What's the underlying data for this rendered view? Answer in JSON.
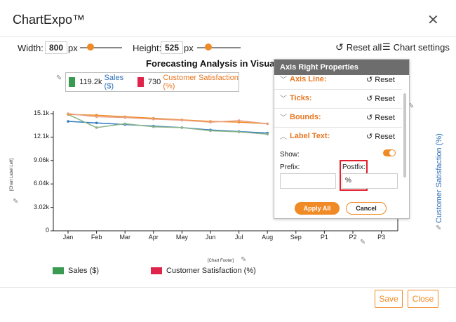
{
  "app": {
    "title": "ChartExpo™"
  },
  "toolbar": {
    "width_label": "Width:",
    "width_value": "800",
    "px": "px",
    "height_label": "Height:",
    "height_value": "525",
    "reset_all": "Reset all",
    "chart_settings": "Chart settings",
    "width_slider_fraction": 0.25,
    "height_slider_fraction": 0.25
  },
  "chart": {
    "title": "Forecasting Analysis in Visuali",
    "legend_top": [
      {
        "value": "119.2k",
        "name": "Sales ($)",
        "color": "#3a9a52",
        "text_color": "#2d6fb8"
      },
      {
        "value": "730",
        "name": "Customer Satisfaction (%)",
        "color": "#e0234a",
        "text_color": "#e87722"
      }
    ],
    "left_axis_label": "[Chart Label Left]",
    "right_axis_label": "Customer Satisfaction (%)",
    "footer_label": "[Chart Footer]",
    "legend_bottom": [
      {
        "name": "Sales ($)",
        "color": "#3a9a52"
      },
      {
        "name": "Customer Satisfaction (%)",
        "color": "#e0234a"
      }
    ]
  },
  "chart_data": {
    "type": "line",
    "title": "Forecasting Analysis in Visuali",
    "x": [
      "Jan",
      "Feb",
      "Mar",
      "Apr",
      "May",
      "Jun",
      "Jul",
      "Aug",
      "Sep",
      "P1",
      "P2",
      "P3"
    ],
    "yticks": [
      "0",
      "3.02k",
      "6.04k",
      "9.06k",
      "12.1k",
      "15.1k"
    ],
    "ylim": [
      0,
      15100
    ],
    "series": [
      {
        "name": "Sales ($)",
        "color": "#2e7bbf",
        "values": [
          14100,
          13900,
          13700,
          13500,
          13300,
          13000,
          12800,
          12600,
          null,
          null,
          null,
          null
        ]
      },
      {
        "name": "Sales ($)",
        "color": "#8cb38a",
        "values": [
          15000,
          13300,
          13800,
          13400,
          13300,
          12900,
          12750,
          12450,
          null,
          null,
          null,
          null
        ]
      },
      {
        "name": "Customer Satisfaction (%)",
        "color": "#f08a24",
        "values": [
          15000,
          14900,
          14700,
          14500,
          14300,
          14100,
          14000,
          13800,
          null,
          null,
          null,
          null
        ]
      },
      {
        "name": "Customer Satisfaction (%)",
        "color": "#e8a080",
        "values": [
          15100,
          14700,
          14600,
          14400,
          14250,
          14000,
          14200,
          13800,
          null,
          null,
          null,
          null
        ]
      }
    ]
  },
  "panel": {
    "title": "Axis Right Properties",
    "sections": [
      {
        "name": "Axis Line:",
        "reset": "Reset",
        "open": false
      },
      {
        "name": "Ticks:",
        "reset": "Reset",
        "open": false
      },
      {
        "name": "Bounds:",
        "reset": "Reset",
        "open": false
      },
      {
        "name": "Label Text:",
        "reset": "Reset",
        "open": true
      }
    ],
    "show_label": "Show:",
    "show_on": true,
    "prefix_label": "Prefix:",
    "prefix_value": "",
    "postfix_label": "Postfix:",
    "postfix_value": "%",
    "apply": "Apply All",
    "cancel": "Cancel"
  },
  "footer": {
    "save": "Save",
    "close": "Close"
  },
  "colors": {
    "accent": "#f08a24",
    "highlight": "#e0202a"
  }
}
